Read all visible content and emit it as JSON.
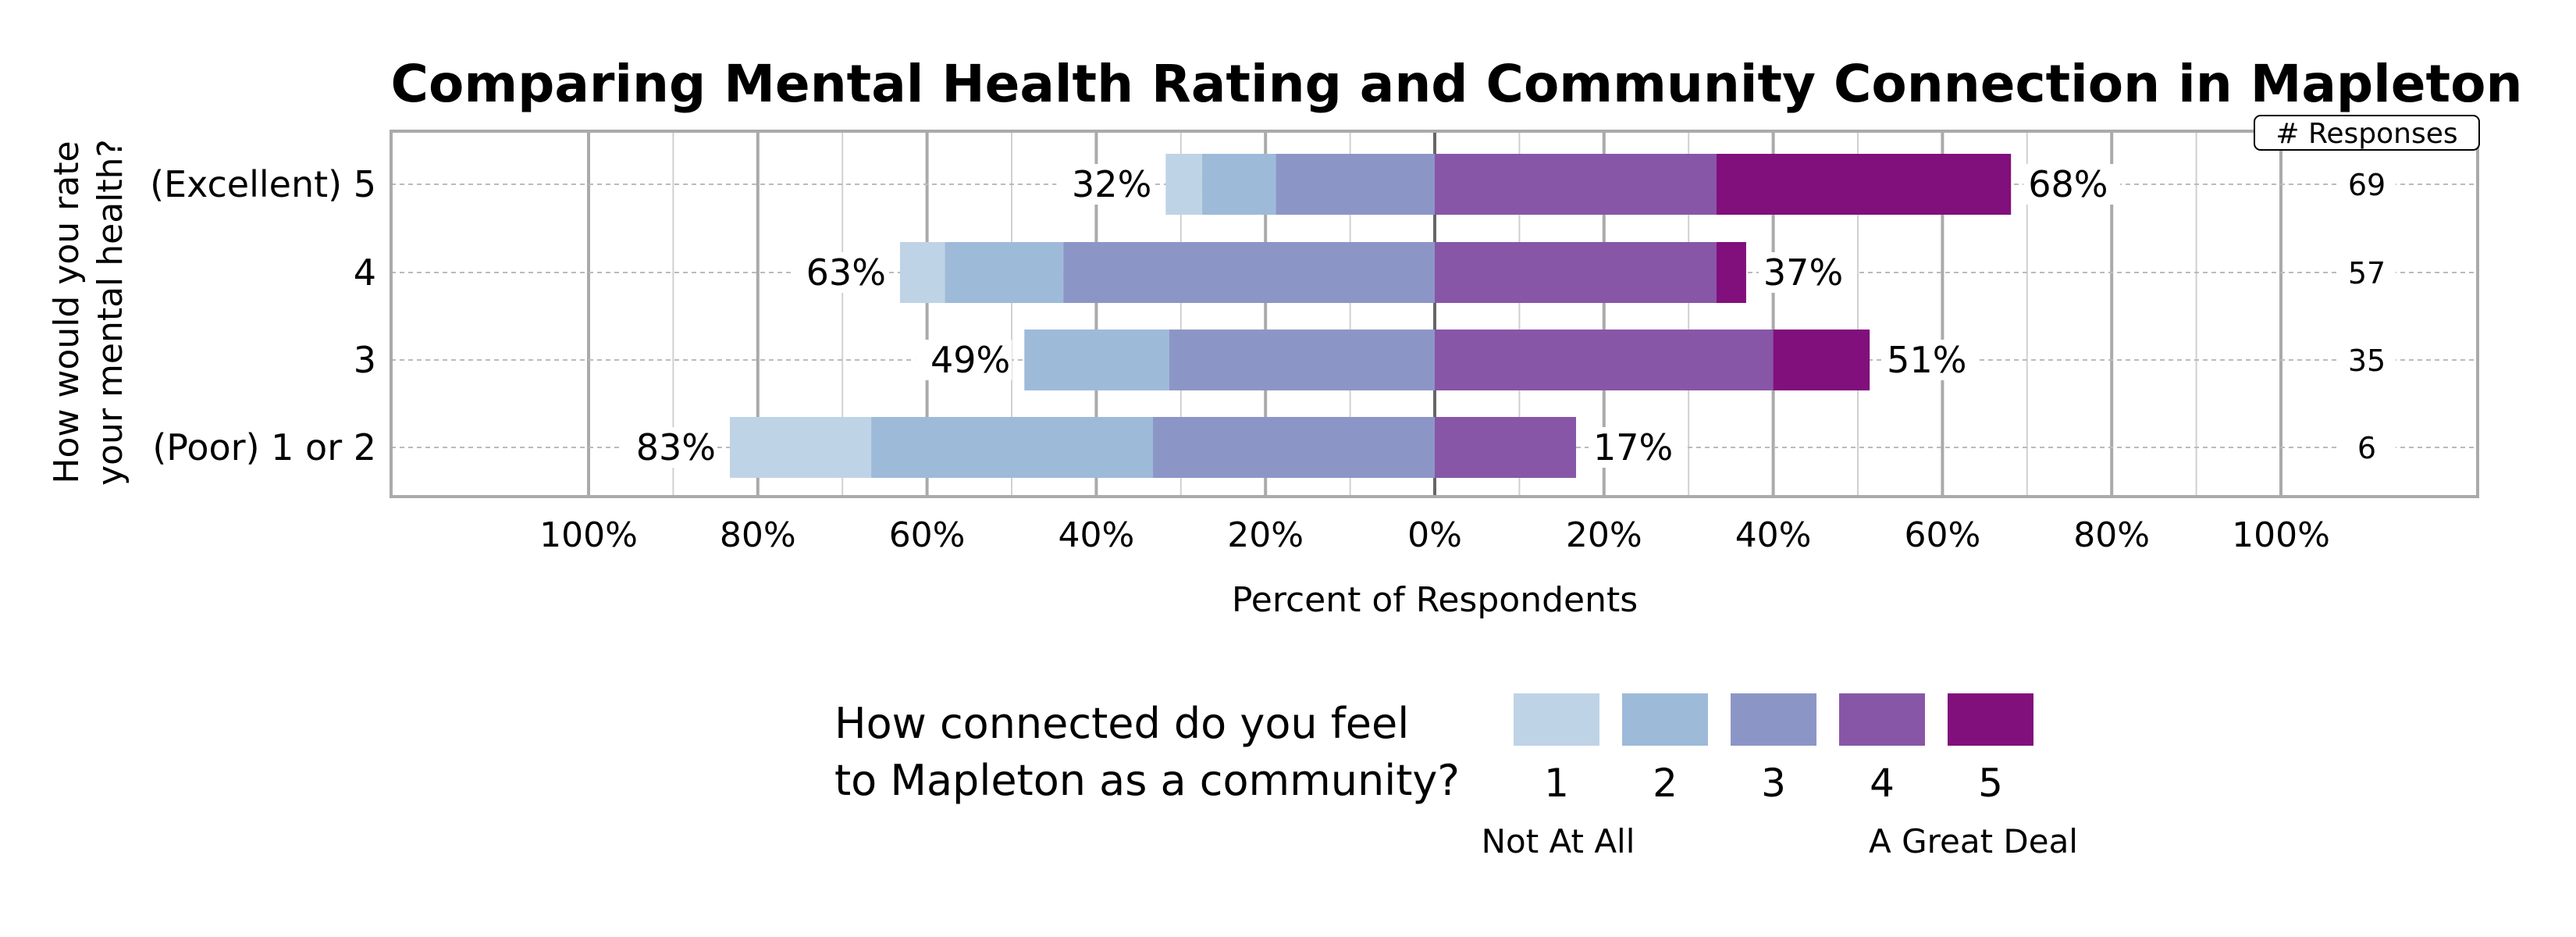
{
  "chart_data": {
    "type": "bar",
    "subtype": "diverging-stacked-horizontal",
    "title": "Comparing Mental Health Rating and Community Connection in Mapleton",
    "xlabel": "Percent of Respondents",
    "ylabel": "How would you rate your mental health?",
    "xlim": [
      -100,
      100
    ],
    "x_ticks": [
      "100%",
      "80%",
      "60%",
      "40%",
      "20%",
      "0%",
      "20%",
      "40%",
      "60%",
      "80%",
      "100%"
    ],
    "grid": true,
    "categories": [
      "(Excellent) 5",
      "4",
      "3",
      "(Poor) 1 or 2"
    ],
    "legend": {
      "title_lines": [
        "How connected do you feel",
        "to Mapleton as a community?"
      ],
      "placement": "bottom",
      "entries": [
        "1",
        "2",
        "3",
        "4",
        "5"
      ],
      "low_label": "Not At All",
      "high_label": "A Great Deal"
    },
    "colors": [
      "#BFD3E6",
      "#9EBAD9",
      "#8C96C6",
      "#8856A7",
      "#810F7C"
    ],
    "series": [
      {
        "name": "1",
        "values": [
          4.3,
          5.3,
          0,
          16.7
        ]
      },
      {
        "name": "2",
        "values": [
          8.7,
          14.0,
          17.1,
          33.3
        ]
      },
      {
        "name": "3",
        "values": [
          18.8,
          43.9,
          31.4,
          33.3
        ]
      },
      {
        "name": "4",
        "values": [
          33.3,
          33.3,
          40.0,
          16.7
        ]
      },
      {
        "name": "5",
        "values": [
          34.8,
          3.5,
          11.4,
          0
        ]
      }
    ],
    "left_totals": [
      "32%",
      "63%",
      "49%",
      "83%"
    ],
    "right_totals": [
      "68%",
      "37%",
      "51%",
      "17%"
    ],
    "responses_header": "# Responses",
    "responses": [
      "69",
      "57",
      "35",
      "6"
    ]
  }
}
